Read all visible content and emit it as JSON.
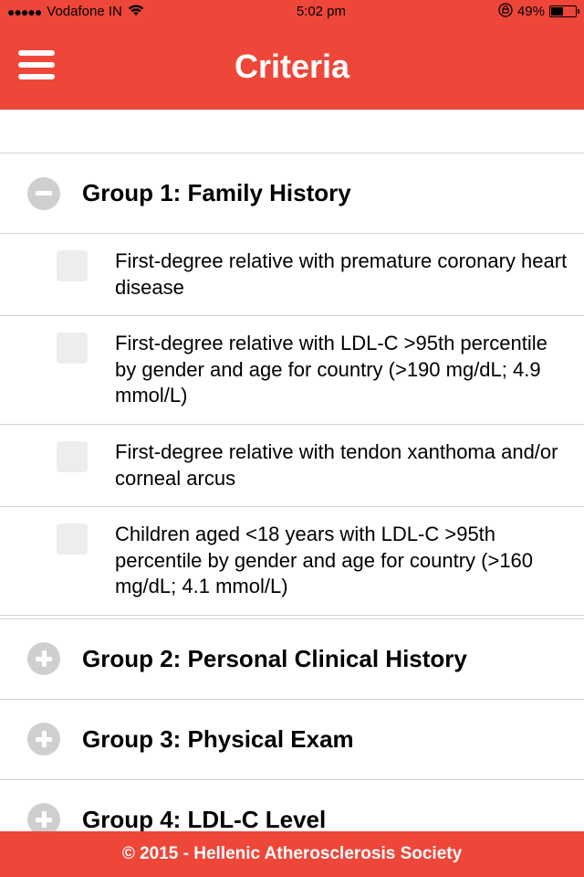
{
  "colors": {
    "accent": "#ee4639",
    "icon_gray": "#cfcfcf",
    "checkbox_gray": "#ededed",
    "divider": "#d0d0d0"
  },
  "status": {
    "carrier": "Vodafone IN",
    "time": "5:02 pm",
    "battery_pct": "49%",
    "battery_fill_pct": 49,
    "signal_dots": "●●●●●",
    "lock_glyph": "⊕"
  },
  "nav": {
    "title": "Criteria"
  },
  "groups": [
    {
      "title": "Group 1: Family History",
      "expanded": true,
      "items": [
        {
          "text": "First-degree relative with premature coronary heart disease"
        },
        {
          "text": "First-degree relative with LDL-C >95th percentile by gender and age for country (>190 mg/dL; 4.9 mmol/L)"
        },
        {
          "text": "First-degree relative with tendon xanthoma and/or corneal arcus"
        },
        {
          "text": "Children aged <18 years with LDL-C >95th percentile by gender and age for country (>160 mg/dL; 4.1 mmol/L)"
        }
      ]
    },
    {
      "title": "Group 2: Personal Clinical History",
      "expanded": false,
      "items": []
    },
    {
      "title": "Group 3: Physical Exam",
      "expanded": false,
      "items": []
    },
    {
      "title": "Group 4: LDL-C Level",
      "expanded": false,
      "items": []
    }
  ],
  "footer": {
    "text": "© 2015 - Hellenic Atherosclerosis Society"
  }
}
